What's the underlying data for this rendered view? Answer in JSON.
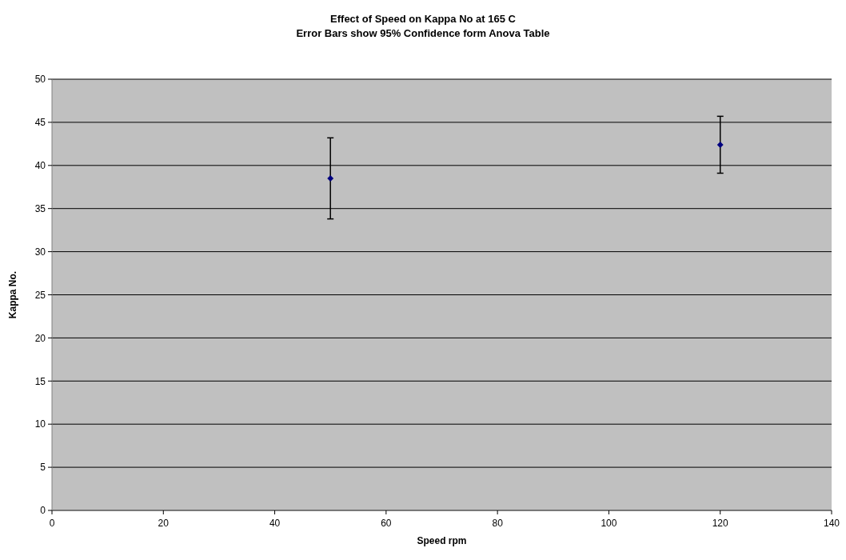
{
  "chart_data": {
    "type": "scatter",
    "title": "Effect of Speed on Kappa No at 165 C",
    "subtitle": "Error Bars show 95% Confidence form Anova Table",
    "xlabel": "Speed rpm",
    "ylabel": "Kappa No.",
    "x": [
      50,
      120
    ],
    "series": [
      {
        "color": "#000080",
        "values": [
          38.5,
          42.4
        ],
        "errors": [
          4.7,
          3.3
        ]
      }
    ],
    "xlim": [
      0,
      140
    ],
    "xticks": [
      0,
      20,
      40,
      60,
      80,
      100,
      120,
      140
    ],
    "ylim": [
      0,
      50
    ],
    "yticks": [
      0,
      5,
      10,
      15,
      20,
      25,
      30,
      35,
      40,
      45,
      50
    ],
    "grid": "y",
    "marker": "diamond"
  }
}
